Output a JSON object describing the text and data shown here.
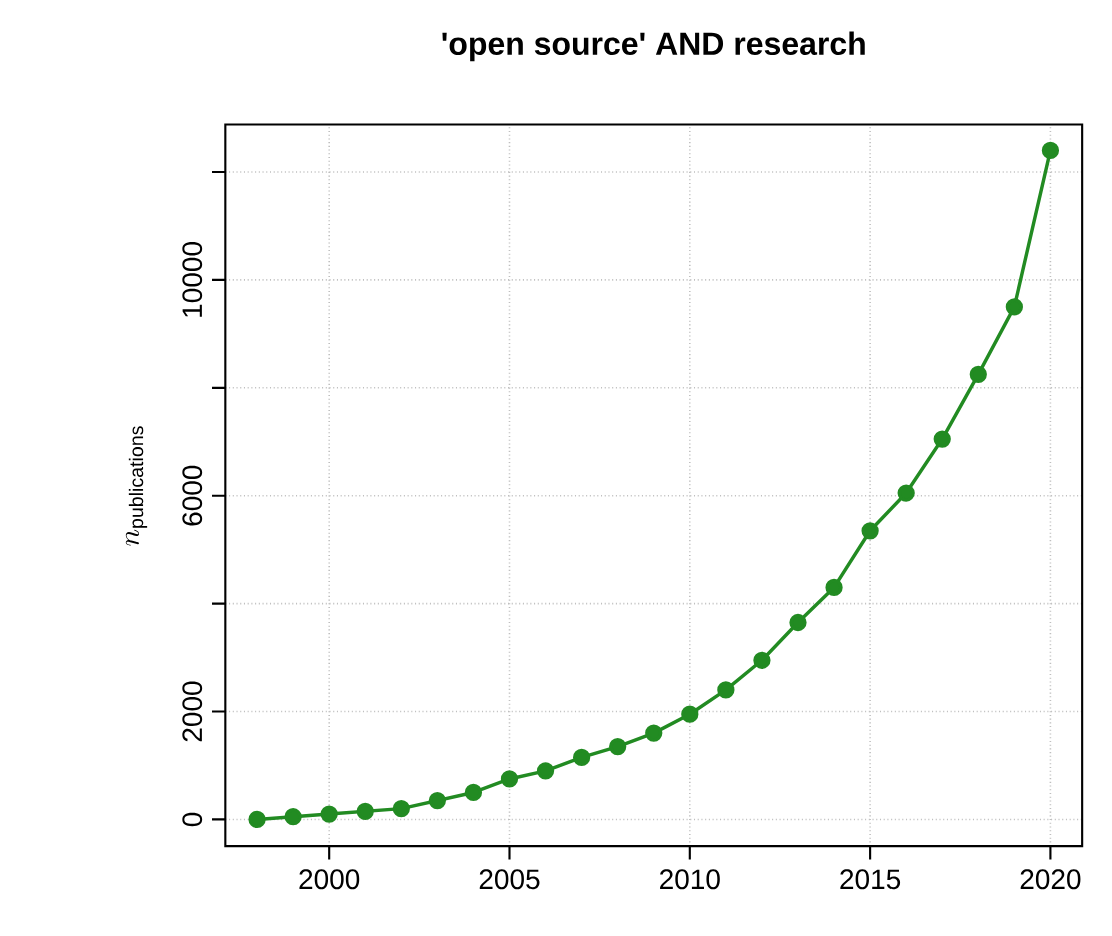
{
  "chart_data": {
    "type": "line",
    "title": "**'open source' AND research**",
    "ylabel": "n_{\\mathrm{publications}}",
    "x": [
      1998,
      1999,
      2000,
      2001,
      2002,
      2003,
      2004,
      2005,
      2006,
      2007,
      2008,
      2009,
      2010,
      2011,
      2012,
      2013,
      2014,
      2015,
      2016,
      2017,
      2018,
      2019,
      2020
    ],
    "series": [
      {
        "color": "#228b22",
        "values": [
          0,
          50,
          100,
          150,
          200,
          350,
          500,
          750,
          900,
          1150,
          1350,
          1600,
          1950,
          2400,
          2950,
          3650,
          4300,
          5350,
          6050,
          7050,
          8250,
          9500,
          12400
        ]
      }
    ],
    "xlim": [
      1997.12,
      2020.88
    ],
    "ylim": [
      -495,
      12880
    ],
    "xticks": [
      2000,
      2005,
      2010,
      2015,
      2020
    ],
    "yticks": [
      0,
      2000,
      {
        "value": 4000,
        "label": null
      },
      6000,
      {
        "value": 8000,
        "label": null
      },
      10000,
      {
        "value": 12000,
        "label": null
      }
    ],
    "grid": true,
    "marker": "circle",
    "line_style": "solid"
  }
}
